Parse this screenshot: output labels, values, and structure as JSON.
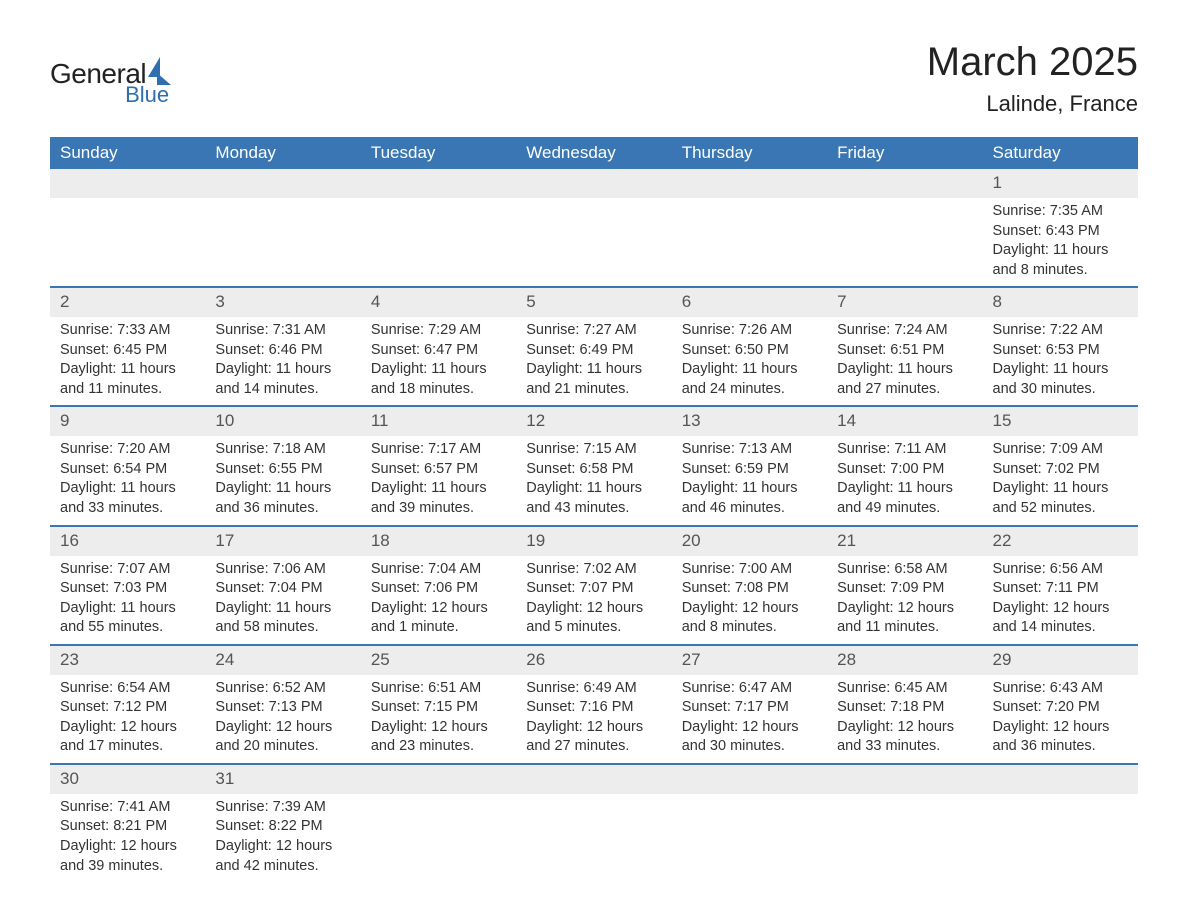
{
  "brand": {
    "general": "General",
    "blue": "Blue"
  },
  "title": "March 2025",
  "location": "Lalinde, France",
  "colors": {
    "header_bg": "#3a76b3",
    "header_fg": "#ffffff",
    "row_divider": "#3a76b3",
    "daynum_bg": "#ededed",
    "brand_blue": "#2f6fad",
    "text": "#333333",
    "page_bg": "#ffffff"
  },
  "weekdays": [
    "Sunday",
    "Monday",
    "Tuesday",
    "Wednesday",
    "Thursday",
    "Friday",
    "Saturday"
  ],
  "weeks": [
    [
      {
        "empty": true
      },
      {
        "empty": true
      },
      {
        "empty": true
      },
      {
        "empty": true
      },
      {
        "empty": true
      },
      {
        "empty": true
      },
      {
        "day": "1",
        "sunrise": "Sunrise: 7:35 AM",
        "sunset": "Sunset: 6:43 PM",
        "dl1": "Daylight: 11 hours",
        "dl2": "and 8 minutes."
      }
    ],
    [
      {
        "day": "2",
        "sunrise": "Sunrise: 7:33 AM",
        "sunset": "Sunset: 6:45 PM",
        "dl1": "Daylight: 11 hours",
        "dl2": "and 11 minutes."
      },
      {
        "day": "3",
        "sunrise": "Sunrise: 7:31 AM",
        "sunset": "Sunset: 6:46 PM",
        "dl1": "Daylight: 11 hours",
        "dl2": "and 14 minutes."
      },
      {
        "day": "4",
        "sunrise": "Sunrise: 7:29 AM",
        "sunset": "Sunset: 6:47 PM",
        "dl1": "Daylight: 11 hours",
        "dl2": "and 18 minutes."
      },
      {
        "day": "5",
        "sunrise": "Sunrise: 7:27 AM",
        "sunset": "Sunset: 6:49 PM",
        "dl1": "Daylight: 11 hours",
        "dl2": "and 21 minutes."
      },
      {
        "day": "6",
        "sunrise": "Sunrise: 7:26 AM",
        "sunset": "Sunset: 6:50 PM",
        "dl1": "Daylight: 11 hours",
        "dl2": "and 24 minutes."
      },
      {
        "day": "7",
        "sunrise": "Sunrise: 7:24 AM",
        "sunset": "Sunset: 6:51 PM",
        "dl1": "Daylight: 11 hours",
        "dl2": "and 27 minutes."
      },
      {
        "day": "8",
        "sunrise": "Sunrise: 7:22 AM",
        "sunset": "Sunset: 6:53 PM",
        "dl1": "Daylight: 11 hours",
        "dl2": "and 30 minutes."
      }
    ],
    [
      {
        "day": "9",
        "sunrise": "Sunrise: 7:20 AM",
        "sunset": "Sunset: 6:54 PM",
        "dl1": "Daylight: 11 hours",
        "dl2": "and 33 minutes."
      },
      {
        "day": "10",
        "sunrise": "Sunrise: 7:18 AM",
        "sunset": "Sunset: 6:55 PM",
        "dl1": "Daylight: 11 hours",
        "dl2": "and 36 minutes."
      },
      {
        "day": "11",
        "sunrise": "Sunrise: 7:17 AM",
        "sunset": "Sunset: 6:57 PM",
        "dl1": "Daylight: 11 hours",
        "dl2": "and 39 minutes."
      },
      {
        "day": "12",
        "sunrise": "Sunrise: 7:15 AM",
        "sunset": "Sunset: 6:58 PM",
        "dl1": "Daylight: 11 hours",
        "dl2": "and 43 minutes."
      },
      {
        "day": "13",
        "sunrise": "Sunrise: 7:13 AM",
        "sunset": "Sunset: 6:59 PM",
        "dl1": "Daylight: 11 hours",
        "dl2": "and 46 minutes."
      },
      {
        "day": "14",
        "sunrise": "Sunrise: 7:11 AM",
        "sunset": "Sunset: 7:00 PM",
        "dl1": "Daylight: 11 hours",
        "dl2": "and 49 minutes."
      },
      {
        "day": "15",
        "sunrise": "Sunrise: 7:09 AM",
        "sunset": "Sunset: 7:02 PM",
        "dl1": "Daylight: 11 hours",
        "dl2": "and 52 minutes."
      }
    ],
    [
      {
        "day": "16",
        "sunrise": "Sunrise: 7:07 AM",
        "sunset": "Sunset: 7:03 PM",
        "dl1": "Daylight: 11 hours",
        "dl2": "and 55 minutes."
      },
      {
        "day": "17",
        "sunrise": "Sunrise: 7:06 AM",
        "sunset": "Sunset: 7:04 PM",
        "dl1": "Daylight: 11 hours",
        "dl2": "and 58 minutes."
      },
      {
        "day": "18",
        "sunrise": "Sunrise: 7:04 AM",
        "sunset": "Sunset: 7:06 PM",
        "dl1": "Daylight: 12 hours",
        "dl2": "and 1 minute."
      },
      {
        "day": "19",
        "sunrise": "Sunrise: 7:02 AM",
        "sunset": "Sunset: 7:07 PM",
        "dl1": "Daylight: 12 hours",
        "dl2": "and 5 minutes."
      },
      {
        "day": "20",
        "sunrise": "Sunrise: 7:00 AM",
        "sunset": "Sunset: 7:08 PM",
        "dl1": "Daylight: 12 hours",
        "dl2": "and 8 minutes."
      },
      {
        "day": "21",
        "sunrise": "Sunrise: 6:58 AM",
        "sunset": "Sunset: 7:09 PM",
        "dl1": "Daylight: 12 hours",
        "dl2": "and 11 minutes."
      },
      {
        "day": "22",
        "sunrise": "Sunrise: 6:56 AM",
        "sunset": "Sunset: 7:11 PM",
        "dl1": "Daylight: 12 hours",
        "dl2": "and 14 minutes."
      }
    ],
    [
      {
        "day": "23",
        "sunrise": "Sunrise: 6:54 AM",
        "sunset": "Sunset: 7:12 PM",
        "dl1": "Daylight: 12 hours",
        "dl2": "and 17 minutes."
      },
      {
        "day": "24",
        "sunrise": "Sunrise: 6:52 AM",
        "sunset": "Sunset: 7:13 PM",
        "dl1": "Daylight: 12 hours",
        "dl2": "and 20 minutes."
      },
      {
        "day": "25",
        "sunrise": "Sunrise: 6:51 AM",
        "sunset": "Sunset: 7:15 PM",
        "dl1": "Daylight: 12 hours",
        "dl2": "and 23 minutes."
      },
      {
        "day": "26",
        "sunrise": "Sunrise: 6:49 AM",
        "sunset": "Sunset: 7:16 PM",
        "dl1": "Daylight: 12 hours",
        "dl2": "and 27 minutes."
      },
      {
        "day": "27",
        "sunrise": "Sunrise: 6:47 AM",
        "sunset": "Sunset: 7:17 PM",
        "dl1": "Daylight: 12 hours",
        "dl2": "and 30 minutes."
      },
      {
        "day": "28",
        "sunrise": "Sunrise: 6:45 AM",
        "sunset": "Sunset: 7:18 PM",
        "dl1": "Daylight: 12 hours",
        "dl2": "and 33 minutes."
      },
      {
        "day": "29",
        "sunrise": "Sunrise: 6:43 AM",
        "sunset": "Sunset: 7:20 PM",
        "dl1": "Daylight: 12 hours",
        "dl2": "and 36 minutes."
      }
    ],
    [
      {
        "day": "30",
        "sunrise": "Sunrise: 7:41 AM",
        "sunset": "Sunset: 8:21 PM",
        "dl1": "Daylight: 12 hours",
        "dl2": "and 39 minutes."
      },
      {
        "day": "31",
        "sunrise": "Sunrise: 7:39 AM",
        "sunset": "Sunset: 8:22 PM",
        "dl1": "Daylight: 12 hours",
        "dl2": "and 42 minutes."
      },
      {
        "empty": true
      },
      {
        "empty": true
      },
      {
        "empty": true
      },
      {
        "empty": true
      },
      {
        "empty": true
      }
    ]
  ]
}
